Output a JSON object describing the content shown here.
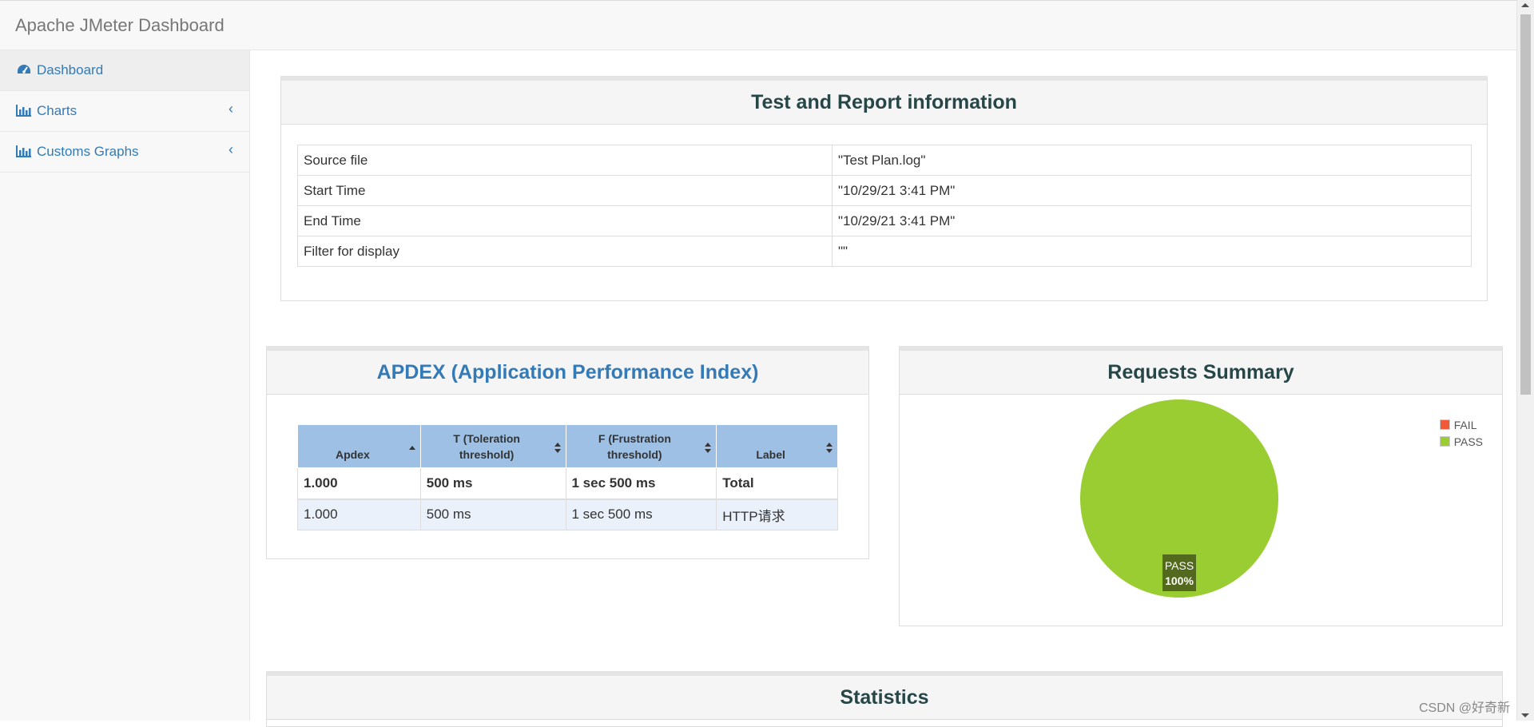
{
  "app": {
    "title": "Apache JMeter Dashboard"
  },
  "sidebar": {
    "items": [
      {
        "label": "Dashboard",
        "icon": "dashboard-icon",
        "active": true
      },
      {
        "label": "Charts",
        "icon": "bar-chart-icon",
        "expandable": true
      },
      {
        "label": "Customs Graphs",
        "icon": "bar-chart-icon",
        "expandable": true
      }
    ]
  },
  "test_info": {
    "title": "Test and Report information",
    "rows": [
      {
        "key": "Source file",
        "value": "\"Test Plan.log\""
      },
      {
        "key": "Start Time",
        "value": "\"10/29/21 3:41 PM\""
      },
      {
        "key": "End Time",
        "value": "\"10/29/21 3:41 PM\""
      },
      {
        "key": "Filter for display",
        "value": "\"\""
      }
    ]
  },
  "apdex": {
    "title": "APDEX (Application Performance Index)",
    "headers": [
      "Apdex",
      "T (Toleration threshold)",
      "F (Frustration threshold)",
      "Label"
    ],
    "rows": [
      [
        "1.000",
        "500 ms",
        "1 sec 500 ms",
        "Total"
      ],
      [
        "1.000",
        "500 ms",
        "1 sec 500 ms",
        "HTTP请求"
      ]
    ]
  },
  "requests_summary": {
    "title": "Requests Summary",
    "legend": [
      {
        "label": "FAIL",
        "color": "#f05a38"
      },
      {
        "label": "PASS",
        "color": "#9acd32"
      }
    ],
    "slice_label": "PASS",
    "slice_percent": "100%"
  },
  "chart_data": {
    "type": "pie",
    "title": "Requests Summary",
    "categories": [
      "FAIL",
      "PASS"
    ],
    "values": [
      0,
      100
    ],
    "colors": [
      "#f05a38",
      "#9acd32"
    ],
    "legend_position": "top-right"
  },
  "statistics": {
    "title": "Statistics"
  },
  "watermark": "CSDN @好奇新"
}
